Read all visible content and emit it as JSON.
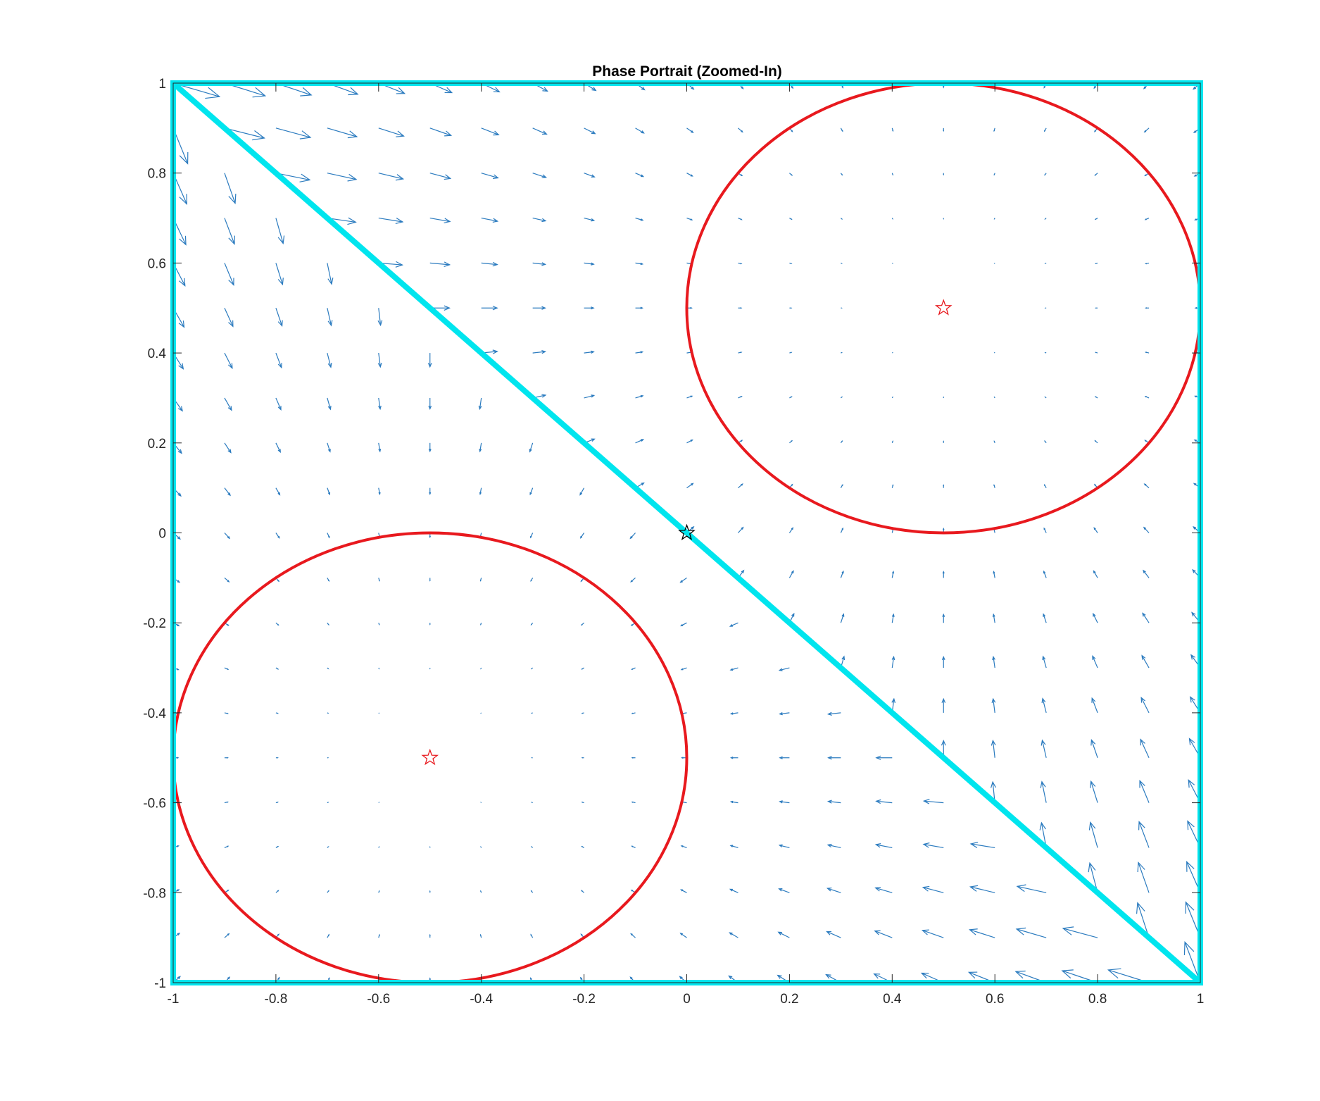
{
  "chart_data": {
    "type": "quiver",
    "title": "Phase Portrait (Zoomed-In)",
    "xlabel": "",
    "ylabel": "",
    "xlim": [
      -1,
      1
    ],
    "ylim": [
      -1,
      1
    ],
    "xticks": [
      -1,
      -0.8,
      -0.6,
      -0.4,
      -0.2,
      0,
      0.2,
      0.4,
      0.6,
      0.8,
      1
    ],
    "yticks": [
      -1,
      -0.8,
      -0.6,
      -0.4,
      -0.2,
      0,
      0.2,
      0.4,
      0.6,
      0.8,
      1
    ],
    "xtick_labels": [
      "-1",
      "-0.8",
      "-0.6",
      "-0.4",
      "-0.2",
      "0",
      "0.2",
      "0.4",
      "0.6",
      "0.8",
      "1"
    ],
    "ytick_labels": [
      "-1",
      "-0.8",
      "-0.6",
      "-0.4",
      "-0.2",
      "0",
      "0.2",
      "0.4",
      "0.6",
      "0.8",
      "1"
    ],
    "grid": false,
    "vector_field": {
      "color": "#2b7bbf",
      "x_range": [
        -1,
        1
      ],
      "y_range": [
        -1,
        1
      ],
      "spacing": 0.1,
      "attractors": [
        [
          0.5,
          0.5
        ],
        [
          -0.5,
          -0.5
        ]
      ]
    },
    "boundary_square": {
      "corners": [
        [
          -1,
          -1
        ],
        [
          1,
          -1
        ],
        [
          1,
          1
        ],
        [
          -1,
          1
        ]
      ],
      "color": "#00e5ee"
    },
    "diagonal_line": {
      "from": [
        -1,
        1
      ],
      "to": [
        1,
        -1
      ],
      "color": "#00e5ee"
    },
    "circles": [
      {
        "center": [
          0.5,
          0.5
        ],
        "radius": 0.5,
        "color": "#e8191e"
      },
      {
        "center": [
          -0.5,
          -0.5
        ],
        "radius": 0.5,
        "color": "#e8191e"
      }
    ],
    "markers": [
      {
        "x": 0.5,
        "y": 0.5,
        "shape": "star",
        "color": "#e8191e"
      },
      {
        "x": -0.5,
        "y": -0.5,
        "shape": "star",
        "color": "#e8191e"
      },
      {
        "x": 0,
        "y": 0,
        "shape": "star",
        "color": "#000000"
      }
    ]
  }
}
